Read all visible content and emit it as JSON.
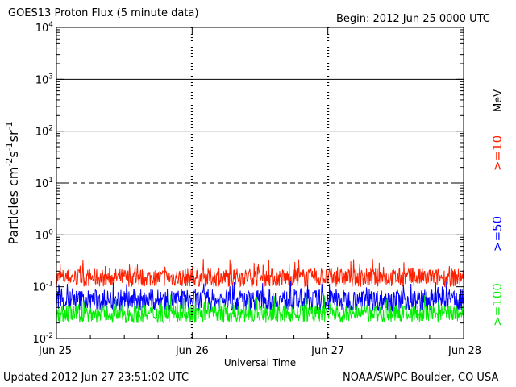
{
  "header": {
    "title": "GOES13 Proton Flux (5 minute data)",
    "begin": "Begin: 2012 Jun 25 0000 UTC"
  },
  "footer": {
    "updated": "Updated 2012 Jun 27 23:51:02 UTC",
    "credit": "NOAA/SWPC Boulder, CO USA"
  },
  "chart_data": {
    "type": "line",
    "title": "GOES13 Proton Flux (5 minute data)",
    "xlabel": "Universal Time",
    "ylabel": "Particles cm-2s-1sr-1",
    "yscale": "log",
    "ylim": [
      0.01,
      10000
    ],
    "xlim": [
      0,
      3
    ],
    "x_ticks": [
      "Jun 25",
      "Jun 26",
      "Jun 27",
      "Jun 28"
    ],
    "y_ticks": [
      {
        "base": "10",
        "exp": "4",
        "value": 10000
      },
      {
        "base": "10",
        "exp": "3",
        "value": 1000
      },
      {
        "base": "10",
        "exp": "2",
        "value": 100
      },
      {
        "base": "10",
        "exp": "1",
        "value": 10
      },
      {
        "base": "10",
        "exp": "0",
        "value": 1
      },
      {
        "base": "10",
        "exp": "-1",
        "value": 0.1
      },
      {
        "base": "10",
        "exp": "-2",
        "value": 0.01
      }
    ],
    "unit_label": "MeV",
    "threshold_lines": [
      {
        "value": 1000,
        "style": "solid"
      },
      {
        "value": 100,
        "style": "solid"
      },
      {
        "value": 10,
        "style": "dashed"
      },
      {
        "value": 1,
        "style": "solid"
      }
    ],
    "grid": "daily dotted verticals",
    "legend_placement": "right",
    "series": [
      {
        "name": ">=10",
        "color": "#ff2000",
        "typical_value": 0.15,
        "min_value": 0.09,
        "max_value": 0.35
      },
      {
        "name": ">=50",
        "color": "#0000ff",
        "typical_value": 0.055,
        "min_value": 0.03,
        "max_value": 0.13
      },
      {
        "name": ">=100",
        "color": "#00ee00",
        "typical_value": 0.03,
        "min_value": 0.018,
        "max_value": 0.07
      }
    ]
  }
}
